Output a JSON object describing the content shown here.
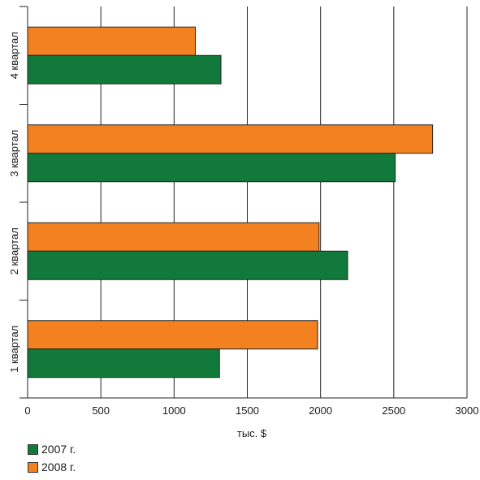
{
  "chart_data": {
    "type": "bar",
    "orientation": "horizontal",
    "categories": [
      "1 квартал",
      "2 квартал",
      "3 квартал",
      "4 квартал"
    ],
    "series": [
      {
        "name": "2007 г.",
        "color": "#117a3a",
        "values": [
          1310,
          2185,
          2510,
          1320
        ]
      },
      {
        "name": "2008 г.",
        "color": "#f48120",
        "values": [
          1980,
          1990,
          2765,
          1145
        ]
      }
    ],
    "xlabel": "тыс. $",
    "ylabel": "",
    "xlim": [
      0,
      3000
    ],
    "xticks": [
      "0",
      "500",
      "1000",
      "1500",
      "2000",
      "2500",
      "3000"
    ],
    "grid": true,
    "legend_position": "bottom-left"
  }
}
